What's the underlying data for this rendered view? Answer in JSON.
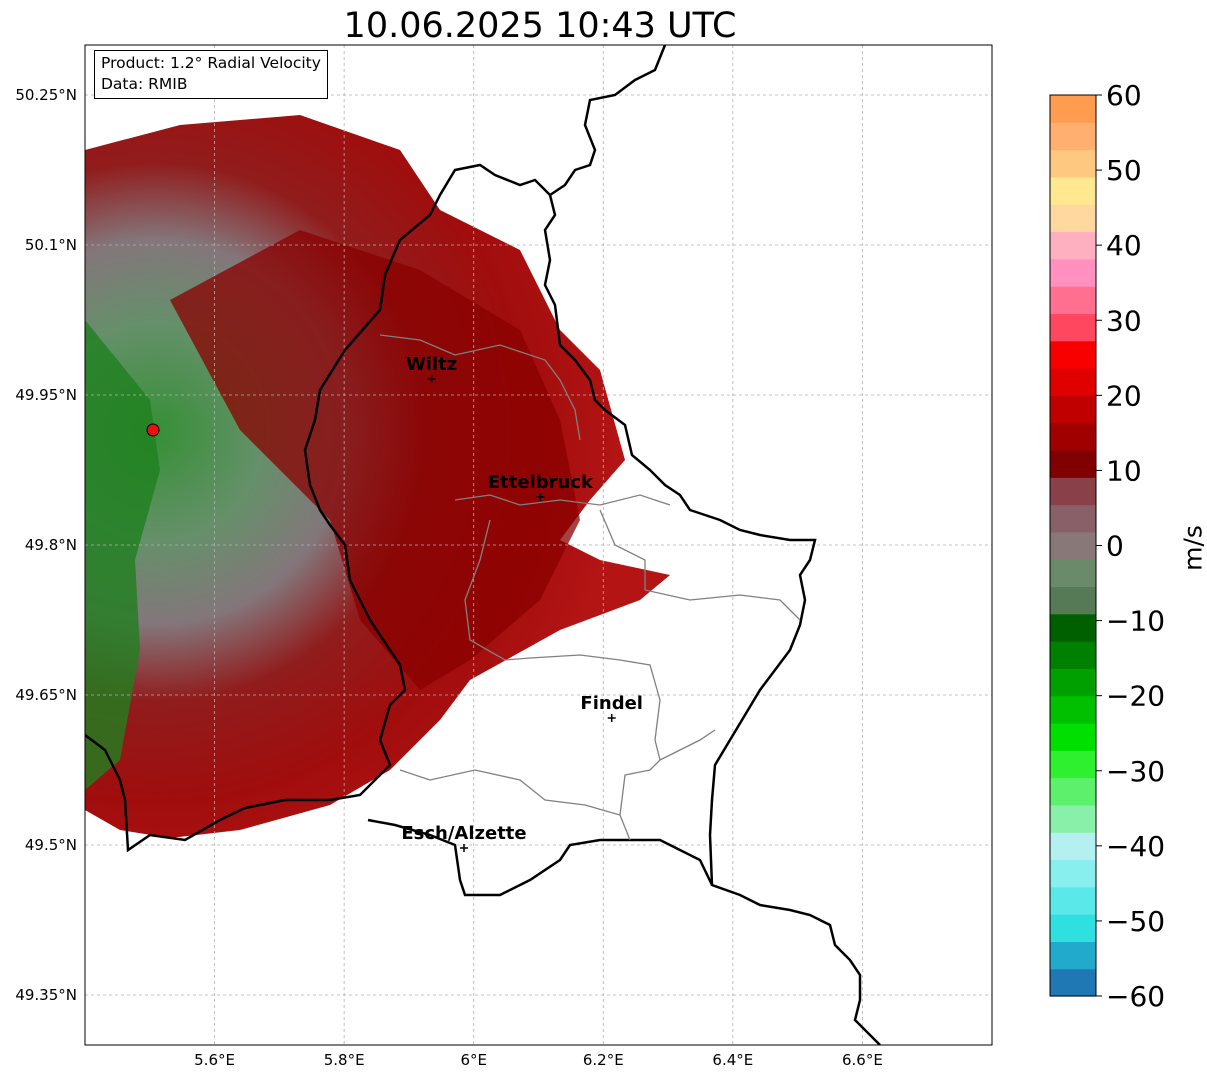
{
  "title": "10.06.2025 10:43 UTC",
  "info": {
    "product": "Product: 1.2° Radial Velocity",
    "source": "Data: RMIB"
  },
  "lat_ticks": [
    {
      "value": 50.25,
      "label": "50.25°N"
    },
    {
      "value": 50.1,
      "label": "50.1°N"
    },
    {
      "value": 49.95,
      "label": "49.95°N"
    },
    {
      "value": 49.8,
      "label": "49.8°N"
    },
    {
      "value": 49.65,
      "label": "49.65°N"
    },
    {
      "value": 49.5,
      "label": "49.5°N"
    },
    {
      "value": 49.35,
      "label": "49.35°N"
    }
  ],
  "lon_ticks": [
    {
      "value": 5.6,
      "label": "5.6°E"
    },
    {
      "value": 5.8,
      "label": "5.8°E"
    },
    {
      "value": 6.0,
      "label": "6°E"
    },
    {
      "value": 6.2,
      "label": "6.2°E"
    },
    {
      "value": 6.4,
      "label": "6.4°E"
    },
    {
      "value": 6.6,
      "label": "6.6°E"
    }
  ],
  "extent": {
    "lon": [
      5.4,
      6.8
    ],
    "lat": [
      49.3,
      50.3
    ]
  },
  "grid": true,
  "radar_site": {
    "lon": 5.505,
    "lat": 49.915,
    "color": "#e8110f"
  },
  "cities": [
    {
      "name": "Wiltz",
      "lon": 5.935,
      "lat": 49.966
    },
    {
      "name": "Ettelbruck",
      "lon": 6.103,
      "lat": 49.848
    },
    {
      "name": "Findel",
      "lon": 6.213,
      "lat": 49.627
    },
    {
      "name": "Esch/Alzette",
      "lon": 5.985,
      "lat": 49.497
    }
  ],
  "colorbar": {
    "label": "m/s",
    "min": -60,
    "max": 60,
    "ticks": [
      {
        "value": 60,
        "label": "60"
      },
      {
        "value": 50,
        "label": "50"
      },
      {
        "value": 40,
        "label": "40"
      },
      {
        "value": 30,
        "label": "30"
      },
      {
        "value": 20,
        "label": "20"
      },
      {
        "value": 10,
        "label": "10"
      },
      {
        "value": 0,
        "label": "0"
      },
      {
        "value": -10,
        "label": "−10"
      },
      {
        "value": -20,
        "label": "−20"
      },
      {
        "value": -30,
        "label": "−30"
      },
      {
        "value": -40,
        "label": "−40"
      },
      {
        "value": -50,
        "label": "−50"
      },
      {
        "value": -60,
        "label": "−60"
      }
    ],
    "colors": [
      "#1f77b4",
      "#22aacc",
      "#2ee0e0",
      "#5ae8e8",
      "#88eeee",
      "#b4f0f0",
      "#88f0a8",
      "#5cf06c",
      "#2ef02e",
      "#00e000",
      "#00c000",
      "#00a000",
      "#008000",
      "#006000",
      "#557a55",
      "#6a8a6a",
      "#887878",
      "#8a6068",
      "#8a4048",
      "#800000",
      "#a00000",
      "#c00000",
      "#e00000",
      "#f80000",
      "#ff4860",
      "#ff7090",
      "#ff90c0",
      "#ffb0c0",
      "#ffd8a0",
      "#ffe890",
      "#ffc880",
      "#ffb070",
      "#ff9c50"
    ]
  },
  "chart_data": {
    "type": "heatmap",
    "title": "10.06.2025 10:43 UTC",
    "xlabel": "",
    "ylabel": "",
    "colorbar_label": "m/s",
    "xlim": [
      5.4,
      6.8
    ],
    "ylim": [
      49.3,
      50.3
    ],
    "clim": [
      -60,
      60
    ],
    "grid": true
  }
}
